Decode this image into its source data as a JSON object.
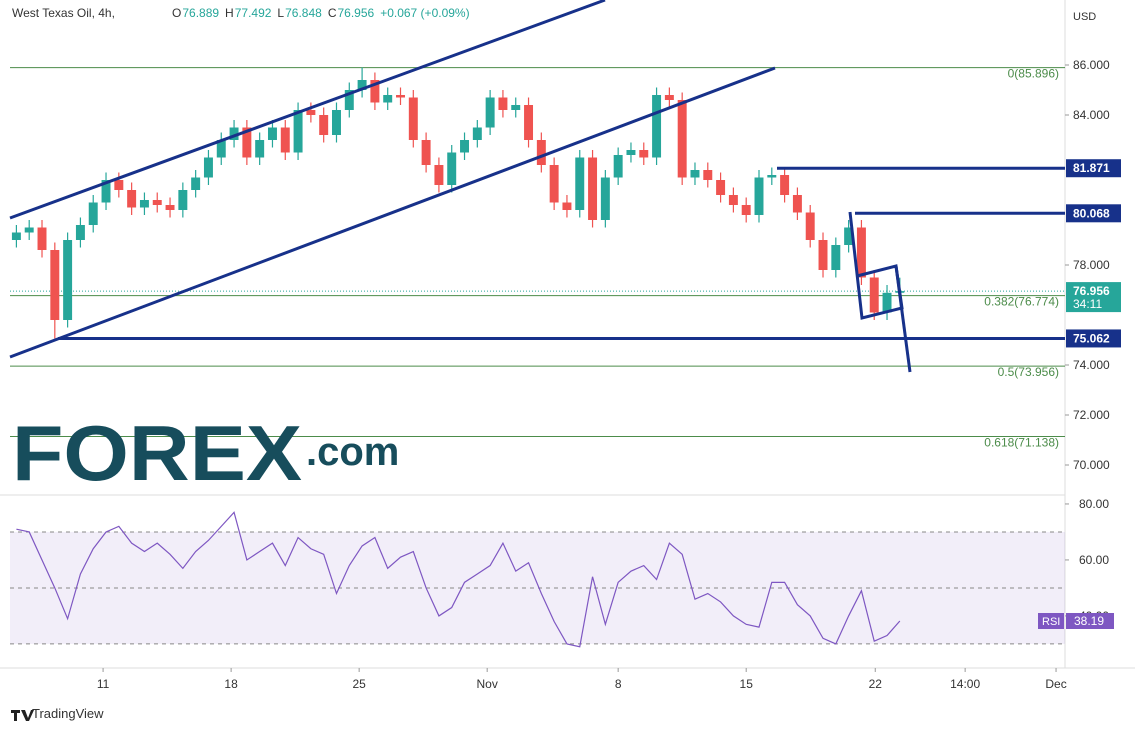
{
  "chart_data": [
    {
      "type": "candlestick",
      "title": "West Texas Oil, 4h,",
      "ohlc_labels": [
        "O",
        "H",
        "L",
        "C"
      ],
      "ohlc_values": [
        76.889,
        77.492,
        76.848,
        76.956
      ],
      "change": "+0.067 (+0.09%)",
      "currency": "USD",
      "countdown": "34:11",
      "up_color": "#26a69a",
      "down_color": "#ef5350",
      "open": [
        79.0,
        79.3,
        79.5,
        78.6,
        75.8,
        79.0,
        79.6,
        80.5,
        81.4,
        81.0,
        80.3,
        80.6,
        80.4,
        80.2,
        81.0,
        81.5,
        82.3,
        83.0,
        83.5,
        82.3,
        83.0,
        83.5,
        82.5,
        84.2,
        84.0,
        83.2,
        84.2,
        85.0,
        85.4,
        84.5,
        84.8,
        84.7,
        83.0,
        82.0,
        81.2,
        82.5,
        83.0,
        83.5,
        84.7,
        84.2,
        84.4,
        83.0,
        82.0,
        80.5,
        80.2,
        82.3,
        79.8,
        81.5,
        82.4,
        82.6,
        82.3,
        84.8,
        84.6,
        81.5,
        81.8,
        81.4,
        80.8,
        80.4,
        80.0,
        81.5,
        81.6,
        80.8,
        80.1,
        79.0,
        77.8,
        78.8,
        79.5,
        77.5,
        76.1,
        76.889
      ],
      "high": [
        79.6,
        79.8,
        79.8,
        78.9,
        79.3,
        79.9,
        80.8,
        81.7,
        81.7,
        81.3,
        80.9,
        80.9,
        80.7,
        81.3,
        81.8,
        82.6,
        83.3,
        83.8,
        83.8,
        83.3,
        83.8,
        83.8,
        84.5,
        84.5,
        84.3,
        84.5,
        85.3,
        85.9,
        85.7,
        85.1,
        85.1,
        85.0,
        83.3,
        82.3,
        82.8,
        83.3,
        83.8,
        85.0,
        85.0,
        84.7,
        84.7,
        83.3,
        82.3,
        80.8,
        82.6,
        82.6,
        81.8,
        82.7,
        82.9,
        82.9,
        85.1,
        85.1,
        84.9,
        82.1,
        82.1,
        81.7,
        81.1,
        80.7,
        81.8,
        81.9,
        81.9,
        81.1,
        80.4,
        79.3,
        79.1,
        79.8,
        79.8,
        77.8,
        77.2,
        77.492
      ],
      "low": [
        78.7,
        79.0,
        78.3,
        75.062,
        75.5,
        78.7,
        79.3,
        80.2,
        80.7,
        80.0,
        80.0,
        80.1,
        79.9,
        79.9,
        80.7,
        81.2,
        82.0,
        82.7,
        82.0,
        82.0,
        82.7,
        82.2,
        82.2,
        83.7,
        82.9,
        82.9,
        83.9,
        84.7,
        84.2,
        84.2,
        84.4,
        82.7,
        81.7,
        80.9,
        80.9,
        82.2,
        82.7,
        83.2,
        83.9,
        83.9,
        82.7,
        81.7,
        80.2,
        79.9,
        79.9,
        79.5,
        79.5,
        81.2,
        82.1,
        82.0,
        82.0,
        84.3,
        81.2,
        81.2,
        81.1,
        80.5,
        80.1,
        79.7,
        79.7,
        81.2,
        80.5,
        79.8,
        78.7,
        77.5,
        77.5,
        78.5,
        77.2,
        75.8,
        75.8,
        76.848
      ],
      "close": [
        79.3,
        79.5,
        78.6,
        75.8,
        79.0,
        79.6,
        80.5,
        81.4,
        81.0,
        80.3,
        80.6,
        80.4,
        80.2,
        81.0,
        81.5,
        82.3,
        83.0,
        83.5,
        82.3,
        83.0,
        83.5,
        82.5,
        84.2,
        84.0,
        83.2,
        84.2,
        85.0,
        85.4,
        84.5,
        84.8,
        84.7,
        83.0,
        82.0,
        81.2,
        82.5,
        83.0,
        83.5,
        84.7,
        84.2,
        84.4,
        83.0,
        82.0,
        80.5,
        80.2,
        82.3,
        79.8,
        81.5,
        82.4,
        82.6,
        82.3,
        84.8,
        84.6,
        81.5,
        81.8,
        81.4,
        80.8,
        80.4,
        80.0,
        81.5,
        81.6,
        80.8,
        80.1,
        79.0,
        77.8,
        78.8,
        79.5,
        77.5,
        76.1,
        76.889,
        76.956
      ],
      "xlim": [
        0,
        82.4
      ],
      "xticks": [
        {
          "value": 7.27,
          "label": "11"
        },
        {
          "value": 17.27,
          "label": "18"
        },
        {
          "value": 27.27,
          "label": "25"
        },
        {
          "value": 37.27,
          "label": "Nov"
        },
        {
          "value": 47.5,
          "label": "8"
        },
        {
          "value": 57.5,
          "label": "15"
        },
        {
          "value": 67.58,
          "label": "22"
        },
        {
          "value": 74.6,
          "label": "14:00"
        },
        {
          "value": 81.7,
          "label": "Dec"
        }
      ],
      "ylim": [
        68.8,
        88.6
      ],
      "yticks": [
        {
          "value": 86,
          "label": "86.000"
        },
        {
          "value": 84,
          "label": "84.000"
        },
        {
          "value": 78,
          "label": "78.000"
        },
        {
          "value": 74,
          "label": "74.000"
        },
        {
          "value": 72,
          "label": "72.000"
        },
        {
          "value": 70,
          "label": "70.000"
        }
      ],
      "fib_levels": [
        {
          "value": 85.896,
          "label": "0(85.896)"
        },
        {
          "value": 76.774,
          "label": "0.382(76.774)"
        },
        {
          "value": 73.956,
          "label": "0.5(73.956)"
        },
        {
          "value": 71.138,
          "label": "0.618(71.138)"
        }
      ],
      "fib_color": "#4c8c4a",
      "levels": [
        {
          "value": 81.871,
          "label": "81.871"
        },
        {
          "value": 80.068,
          "label": "80.068"
        },
        {
          "value": 75.062,
          "label": "75.062"
        }
      ],
      "level_color": "#17318a"
    },
    {
      "type": "line",
      "name": "RSI",
      "color": "#7e57c2",
      "values": [
        71,
        70,
        60,
        50,
        39,
        55,
        64,
        70,
        72,
        66,
        63,
        66,
        62,
        57,
        63,
        67,
        72,
        77,
        60,
        63,
        66,
        58,
        68,
        64,
        62,
        48,
        58,
        65,
        68,
        57,
        61,
        63,
        50,
        40,
        43,
        52,
        55,
        58,
        66,
        56,
        59,
        48,
        38,
        30,
        29,
        54,
        37,
        52,
        56,
        58,
        53,
        66,
        62,
        46,
        48,
        45,
        40,
        37,
        36,
        52,
        52,
        44,
        40,
        32,
        30,
        40,
        49,
        31,
        33,
        38.19
      ],
      "ylim": [
        21.4,
        83.2
      ],
      "yticks": [
        {
          "value": 80,
          "label": "80.00"
        },
        {
          "value": 60,
          "label": "60.00"
        },
        {
          "value": 40,
          "label": "40.00"
        }
      ],
      "band": [
        30,
        70
      ],
      "midline": 50
    }
  ],
  "logo": {
    "brand": "FOREX",
    "suffix": ".com"
  },
  "footer": "TradingView"
}
